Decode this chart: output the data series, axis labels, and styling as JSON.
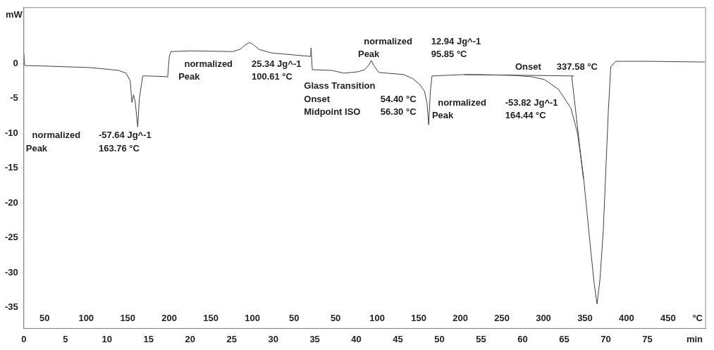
{
  "chart_data": {
    "type": "line",
    "xlabel": "min",
    "ylabel": "mW",
    "xlim": [
      0,
      82
    ],
    "xticks": [
      0,
      5,
      10,
      15,
      20,
      25,
      30,
      35,
      40,
      45,
      50,
      55,
      60,
      65,
      70,
      75
    ],
    "ylim": [
      -38,
      8
    ],
    "yticks": [
      -35,
      -30,
      -25,
      -20,
      -15,
      -10,
      -5,
      0
    ],
    "grid": false,
    "legend": false,
    "marker": "none",
    "line_style": "solid",
    "annotations": [
      "normalized",
      "-57.64 Jg^-1",
      "Peak",
      "163.76 °C",
      "normalized",
      "25.34 Jg^-1",
      "Peak",
      "100.61 °C",
      "normalized",
      "12.94 Jg^-1",
      "Peak",
      "95.85 °C",
      "Glass Transition",
      "Onset",
      "54.40 °C",
      "Midpoint ISO",
      "56.30 °C",
      "normalized",
      "-53.82 Jg^-1",
      "Peak",
      "164.44 °C",
      "Onset",
      "337.58 °C",
      "50",
      "100",
      "150",
      "200",
      "150",
      "100",
      "50",
      "50",
      "100",
      "150",
      "200",
      "250",
      "300",
      "350",
      "400",
      "450",
      "°C"
    ],
    "series": [
      {
        "color": "#404040",
        "x": [
          0,
          0.1,
          3,
          8,
          11.4,
          12.3,
          12.8,
          13.0,
          13.2,
          13.4,
          13.7,
          13.9,
          14.3,
          15.0,
          17.2,
          17.3,
          17.5,
          17.7,
          20,
          25.1,
          26.0,
          26.6,
          27.1,
          27.6,
          28.3,
          29.8,
          34.5,
          34.55,
          34.7,
          37.0,
          37.4,
          38.5,
          40.2,
          41.0,
          41.5,
          41.8,
          42.1,
          42.7,
          45.7,
          46.8,
          47.6,
          48.2,
          48.5,
          48.7,
          48.9,
          49.1,
          53.0,
          58.7,
          61.0,
          62.6,
          64.3,
          65.8,
          66.6,
          67.3,
          68.1,
          68.6,
          68.95,
          69.3,
          69.7,
          70.0,
          70.3,
          70.6,
          71.2,
          75,
          81.9
        ],
        "values": [
          1.5,
          -0.3,
          -0.4,
          -0.6,
          -1.0,
          -1.4,
          -2.5,
          -5.6,
          -4.5,
          -5.5,
          -9.1,
          -5,
          -1.8,
          -1.8,
          -1.9,
          -2.0,
          1.0,
          1.7,
          1.8,
          1.7,
          2.0,
          2.6,
          3.0,
          2.7,
          2.0,
          1.5,
          1.0,
          2.2,
          -0.9,
          -1.0,
          -1.1,
          -1.4,
          -1.2,
          -0.9,
          -0.2,
          0.4,
          -0.3,
          -1.3,
          -1.6,
          -2.2,
          -3.0,
          -4.0,
          -5.7,
          -8.8,
          -4,
          -1.8,
          -1.6,
          -1.7,
          -1.9,
          -2.3,
          -3.7,
          -6.4,
          -10,
          -16,
          -25.7,
          -31.5,
          -34.5,
          -31,
          -24,
          -15.5,
          -7,
          -0.5,
          0.3,
          0.3,
          0.2
        ]
      },
      {
        "color": "#404040",
        "x": [
          53,
          66.2
        ],
        "values": [
          -1.6,
          -1.8
        ]
      },
      {
        "color": "#404040",
        "x": [
          65.9,
          67.3
        ],
        "values": [
          -1.8,
          -16.5
        ]
      }
    ]
  }
}
